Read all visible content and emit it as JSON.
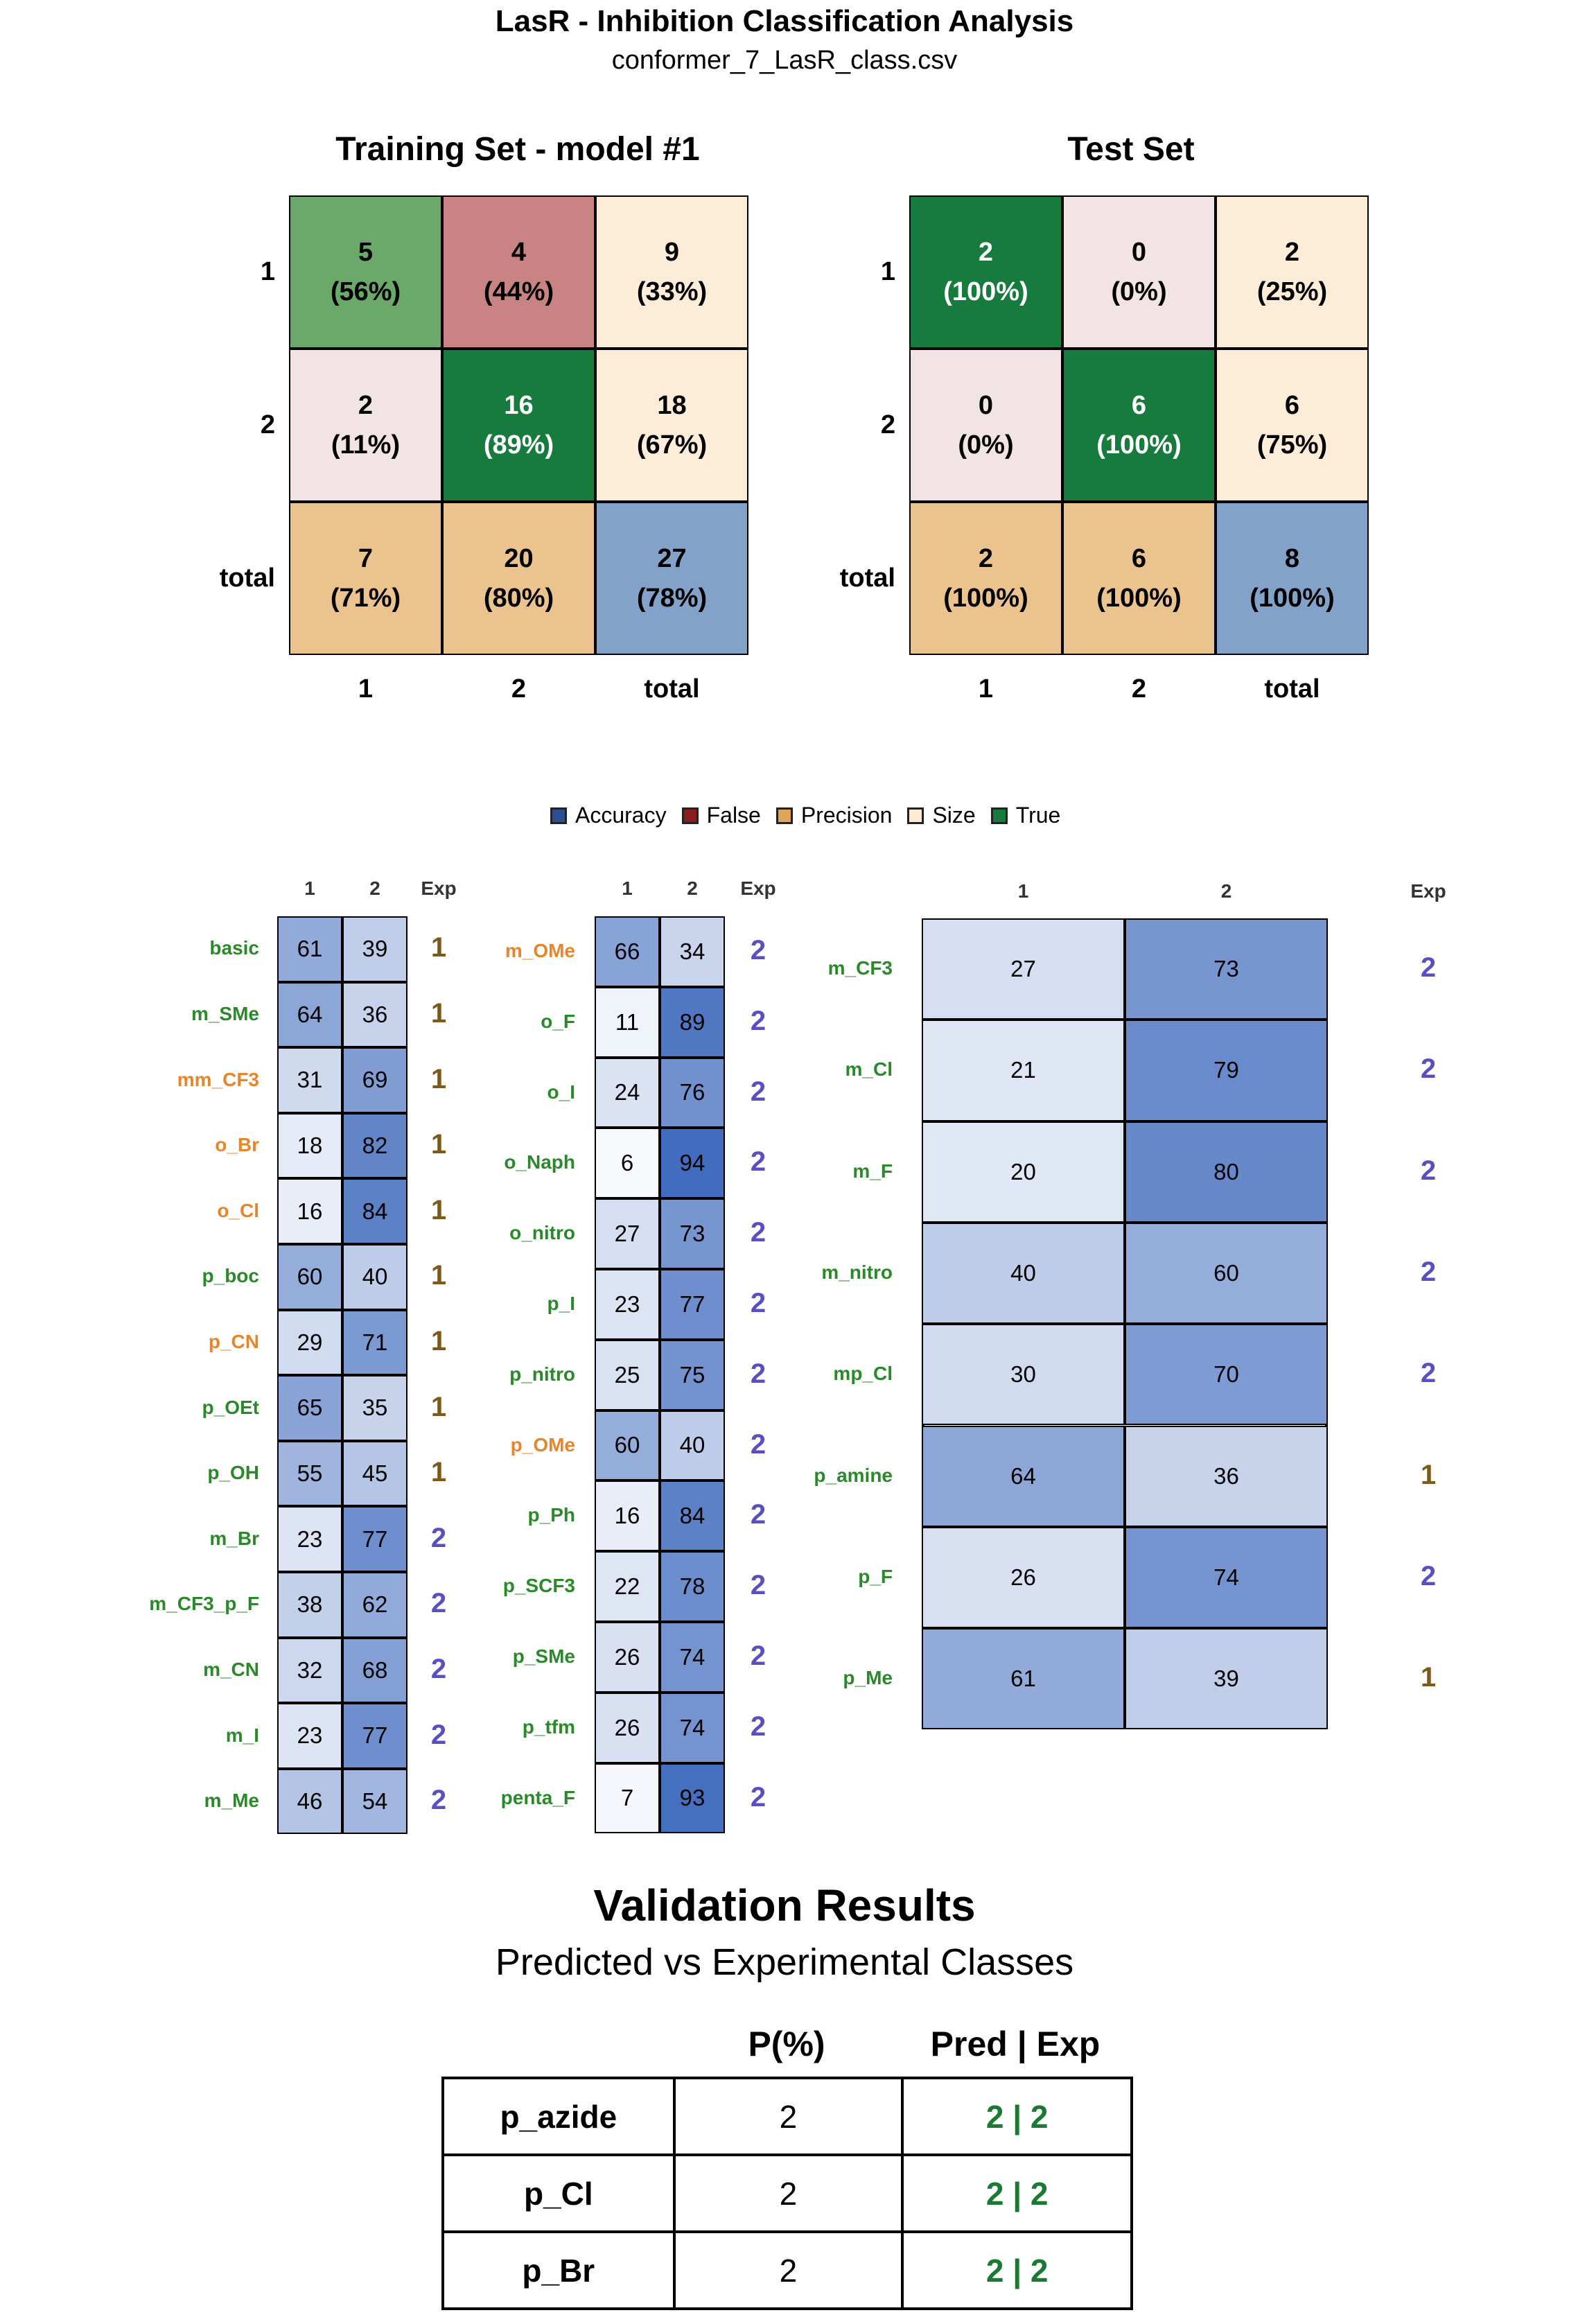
{
  "title": "LasR - Inhibition Classification Analysis",
  "subtitle": "conformer_7_LasR_class.csv",
  "chart_data": [
    {
      "type": "heatmap",
      "title": "Training Set - model #1",
      "row_labels": [
        "1",
        "2",
        "total"
      ],
      "col_labels": [
        "1",
        "2",
        "total"
      ],
      "cells": [
        [
          {
            "count": "5",
            "pct": "(56%)",
            "kind": "true-light"
          },
          {
            "count": "4",
            "pct": "(44%)",
            "kind": "false"
          },
          {
            "count": "9",
            "pct": "(33%)",
            "kind": "size"
          }
        ],
        [
          {
            "count": "2",
            "pct": "(11%)",
            "kind": "false-light"
          },
          {
            "count": "16",
            "pct": "(89%)",
            "kind": "true"
          },
          {
            "count": "18",
            "pct": "(67%)",
            "kind": "size"
          }
        ],
        [
          {
            "count": "7",
            "pct": "(71%)",
            "kind": "precision"
          },
          {
            "count": "20",
            "pct": "(80%)",
            "kind": "precision"
          },
          {
            "count": "27",
            "pct": "(78%)",
            "kind": "accuracy"
          }
        ]
      ]
    },
    {
      "type": "heatmap",
      "title": "Test Set",
      "row_labels": [
        "1",
        "2",
        "total"
      ],
      "col_labels": [
        "1",
        "2",
        "total"
      ],
      "cells": [
        [
          {
            "count": "2",
            "pct": "(100%)",
            "kind": "true"
          },
          {
            "count": "0",
            "pct": "(0%)",
            "kind": "false-light"
          },
          {
            "count": "2",
            "pct": "(25%)",
            "kind": "size"
          }
        ],
        [
          {
            "count": "0",
            "pct": "(0%)",
            "kind": "false-light"
          },
          {
            "count": "6",
            "pct": "(100%)",
            "kind": "true"
          },
          {
            "count": "6",
            "pct": "(75%)",
            "kind": "size"
          }
        ],
        [
          {
            "count": "2",
            "pct": "(100%)",
            "kind": "precision"
          },
          {
            "count": "6",
            "pct": "(100%)",
            "kind": "precision"
          },
          {
            "count": "8",
            "pct": "(100%)",
            "kind": "accuracy"
          }
        ]
      ]
    },
    {
      "type": "heatmap",
      "title": "",
      "columns": [
        "1",
        "2",
        "Exp"
      ],
      "rows": [
        {
          "label": "basic",
          "label_color": "green",
          "v1": 61,
          "v2": 39,
          "exp": "1"
        },
        {
          "label": "m_SMe",
          "label_color": "green",
          "v1": 64,
          "v2": 36,
          "exp": "1"
        },
        {
          "label": "mm_CF3",
          "label_color": "orange",
          "v1": 31,
          "v2": 69,
          "exp": "1"
        },
        {
          "label": "o_Br",
          "label_color": "orange",
          "v1": 18,
          "v2": 82,
          "exp": "1"
        },
        {
          "label": "o_Cl",
          "label_color": "orange",
          "v1": 16,
          "v2": 84,
          "exp": "1"
        },
        {
          "label": "p_boc",
          "label_color": "green",
          "v1": 60,
          "v2": 40,
          "exp": "1"
        },
        {
          "label": "p_CN",
          "label_color": "orange",
          "v1": 29,
          "v2": 71,
          "exp": "1"
        },
        {
          "label": "p_OEt",
          "label_color": "green",
          "v1": 65,
          "v2": 35,
          "exp": "1"
        },
        {
          "label": "p_OH",
          "label_color": "green",
          "v1": 55,
          "v2": 45,
          "exp": "1"
        },
        {
          "label": "m_Br",
          "label_color": "green",
          "v1": 23,
          "v2": 77,
          "exp": "2"
        },
        {
          "label": "m_CF3_p_F",
          "label_color": "green",
          "v1": 38,
          "v2": 62,
          "exp": "2"
        },
        {
          "label": "m_CN",
          "label_color": "green",
          "v1": 32,
          "v2": 68,
          "exp": "2"
        },
        {
          "label": "m_I",
          "label_color": "green",
          "v1": 23,
          "v2": 77,
          "exp": "2"
        },
        {
          "label": "m_Me",
          "label_color": "green",
          "v1": 46,
          "v2": 54,
          "exp": "2"
        }
      ]
    },
    {
      "type": "heatmap",
      "title": "",
      "columns": [
        "1",
        "2",
        "Exp"
      ],
      "rows": [
        {
          "label": "m_OMe",
          "label_color": "orange",
          "v1": 66,
          "v2": 34,
          "exp": "2"
        },
        {
          "label": "o_F",
          "label_color": "green",
          "v1": 11,
          "v2": 89,
          "exp": "2"
        },
        {
          "label": "o_I",
          "label_color": "green",
          "v1": 24,
          "v2": 76,
          "exp": "2"
        },
        {
          "label": "o_Naph",
          "label_color": "green",
          "v1": 6,
          "v2": 94,
          "exp": "2"
        },
        {
          "label": "o_nitro",
          "label_color": "green",
          "v1": 27,
          "v2": 73,
          "exp": "2"
        },
        {
          "label": "p_I",
          "label_color": "green",
          "v1": 23,
          "v2": 77,
          "exp": "2"
        },
        {
          "label": "p_nitro",
          "label_color": "green",
          "v1": 25,
          "v2": 75,
          "exp": "2"
        },
        {
          "label": "p_OMe",
          "label_color": "orange",
          "v1": 60,
          "v2": 40,
          "exp": "2"
        },
        {
          "label": "p_Ph",
          "label_color": "green",
          "v1": 16,
          "v2": 84,
          "exp": "2"
        },
        {
          "label": "p_SCF3",
          "label_color": "green",
          "v1": 22,
          "v2": 78,
          "exp": "2"
        },
        {
          "label": "p_SMe",
          "label_color": "green",
          "v1": 26,
          "v2": 74,
          "exp": "2"
        },
        {
          "label": "p_tfm",
          "label_color": "green",
          "v1": 26,
          "v2": 74,
          "exp": "2"
        },
        {
          "label": "penta_F",
          "label_color": "green",
          "v1": 7,
          "v2": 93,
          "exp": "2"
        }
      ]
    },
    {
      "type": "heatmap",
      "title": "",
      "columns": [
        "1",
        "2",
        "Exp"
      ],
      "rows": [
        {
          "label": "m_CF3",
          "label_color": "green",
          "v1": 27,
          "v2": 73,
          "exp": "2"
        },
        {
          "label": "m_Cl",
          "label_color": "green",
          "v1": 21,
          "v2": 79,
          "exp": "2"
        },
        {
          "label": "m_F",
          "label_color": "green",
          "v1": 20,
          "v2": 80,
          "exp": "2"
        },
        {
          "label": "m_nitro",
          "label_color": "green",
          "v1": 40,
          "v2": 60,
          "exp": "2"
        },
        {
          "label": "mp_Cl",
          "label_color": "green",
          "v1": 30,
          "v2": 70,
          "exp": "2"
        },
        {
          "label": "p_amine",
          "label_color": "green",
          "v1": 64,
          "v2": 36,
          "exp": "1"
        },
        {
          "label": "p_F",
          "label_color": "green",
          "v1": 26,
          "v2": 74,
          "exp": "2"
        },
        {
          "label": "p_Me",
          "label_color": "green",
          "v1": 61,
          "v2": 39,
          "exp": "1"
        }
      ]
    }
  ],
  "legend": [
    {
      "label": "Accuracy",
      "color": "#2c4e93"
    },
    {
      "label": "False",
      "color": "#8c1c1c"
    },
    {
      "label": "Precision",
      "color": "#e0a45a"
    },
    {
      "label": "Size",
      "color": "#fdebd3"
    },
    {
      "label": "True",
      "color": "#167b3d"
    }
  ],
  "colors": {
    "true": "#167b3d",
    "true-light": "#6aa96a",
    "false": "#c98382",
    "false-light": "#f2e4e4",
    "size": "#fdecd8",
    "precision": "#ebc38e",
    "accuracy": "#82a2c9",
    "label_green": "#2a8a2a",
    "label_orange": "#e8852a",
    "exp1": "#7d5a1a",
    "exp2": "#5a4fc0"
  },
  "validation": {
    "title": "Validation Results",
    "subtitle": "Predicted vs Experimental Classes",
    "headers": [
      "P(%)",
      "Pred | Exp"
    ],
    "rows": [
      {
        "name": "p_azide",
        "p": "2",
        "pe": "2 | 2"
      },
      {
        "name": "p_Cl",
        "p": "2",
        "pe": "2 | 2"
      },
      {
        "name": "p_Br",
        "p": "2",
        "pe": "2 | 2"
      }
    ]
  }
}
